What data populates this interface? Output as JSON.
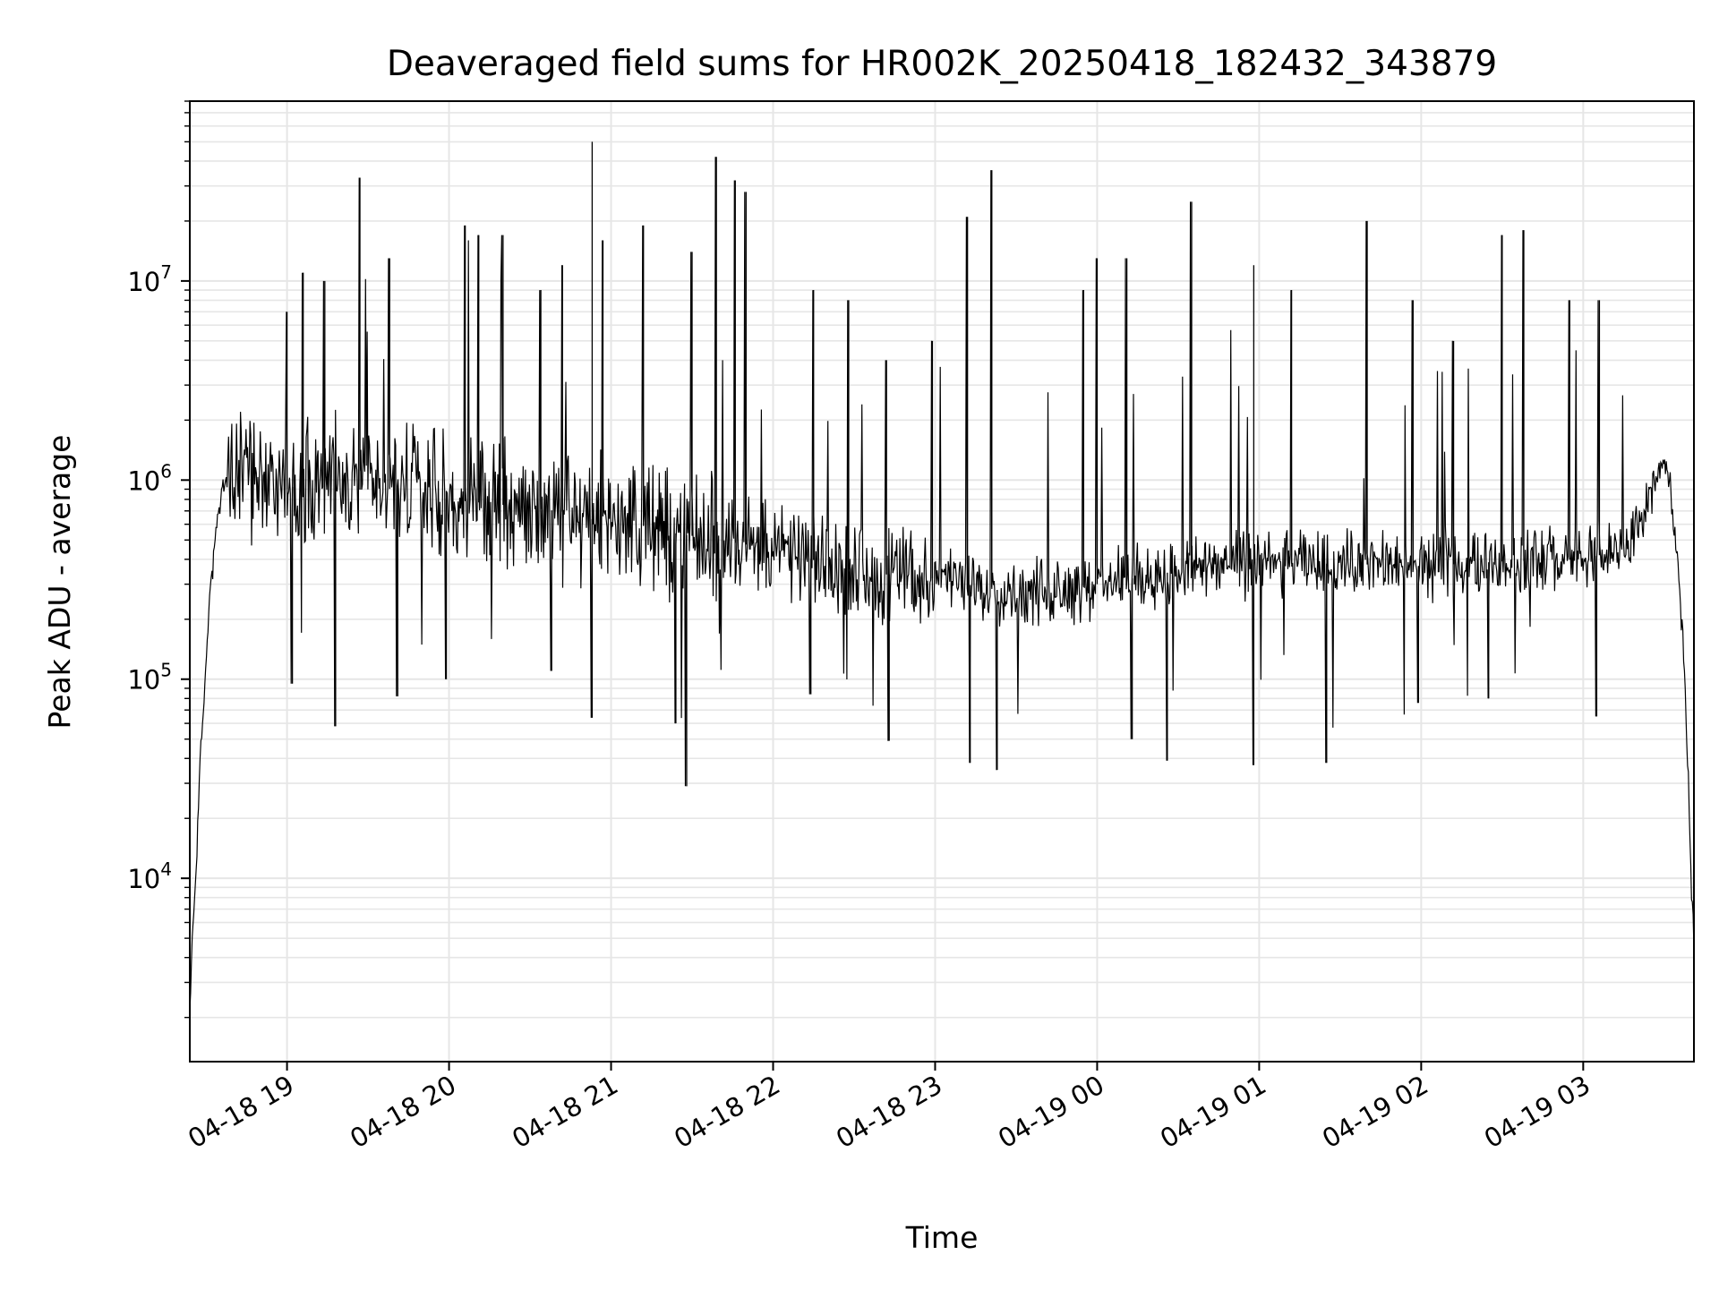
{
  "chart_data": {
    "type": "line",
    "title": "Deaveraged field sums for HR002K_20250418_182432_343879",
    "xlabel": "Time",
    "ylabel": "Peak ADU - average",
    "yscale": "log",
    "ylim": [
      1200,
      80000000
    ],
    "xlim": [
      "2025-04-18 18:24",
      "2025-04-19 03:41"
    ],
    "grid": true,
    "line_color": "#000000",
    "grid_color": "#e6e6e6",
    "x_tick_labels": [
      "04-18 19",
      "04-18 20",
      "04-18 21",
      "04-18 22",
      "04-18 23",
      "04-19 00",
      "04-19 01",
      "04-19 02",
      "04-19 03"
    ],
    "x_ticks": [
      "2025-04-18 19:00",
      "2025-04-18 20:00",
      "2025-04-18 21:00",
      "2025-04-18 22:00",
      "2025-04-18 23:00",
      "2025-04-19 00:00",
      "2025-04-19 01:00",
      "2025-04-19 02:00",
      "2025-04-19 03:00"
    ],
    "y_ticks": [
      {
        "value": 10000,
        "base": "10",
        "exp": "4"
      },
      {
        "value": 100000,
        "base": "10",
        "exp": "5"
      },
      {
        "value": 1000000,
        "base": "10",
        "exp": "6"
      },
      {
        "value": 10000000,
        "base": "10",
        "exp": "7"
      }
    ],
    "series": [
      {
        "points": [
          [
            "2025-04-18 18:24",
            2000
          ],
          [
            "2025-04-18 18:25",
            5500
          ],
          [
            "2025-04-18 18:26",
            9000
          ],
          [
            "2025-04-18 18:27",
            20000
          ],
          [
            "2025-04-18 18:28",
            40000
          ],
          [
            "2025-04-18 18:30",
            120000
          ],
          [
            "2025-04-18 18:31",
            220000
          ],
          [
            "2025-04-18 18:33",
            450000
          ],
          [
            "2025-04-18 18:35",
            750000
          ],
          [
            "2025-04-18 18:37",
            950000
          ],
          [
            "2025-04-18 18:40",
            1100000
          ],
          [
            "2025-04-18 18:45",
            1000000
          ],
          [
            "2025-04-18 18:50",
            1200000
          ],
          [
            "2025-04-18 19:00",
            900000
          ],
          [
            "2025-04-18 19:15",
            1100000
          ],
          [
            "2025-04-18 19:30",
            850000
          ],
          [
            "2025-04-18 19:45",
            950000
          ],
          [
            "2025-04-18 20:00",
            800000
          ],
          [
            "2025-04-18 20:20",
            750000
          ],
          [
            "2025-04-18 20:40",
            700000
          ],
          [
            "2025-04-18 21:00",
            650000
          ],
          [
            "2025-04-18 21:20",
            550000
          ],
          [
            "2025-04-18 21:40",
            500000
          ],
          [
            "2025-04-18 22:00",
            450000
          ],
          [
            "2025-04-18 22:30",
            350000
          ],
          [
            "2025-04-18 23:00",
            320000
          ],
          [
            "2025-04-18 23:30",
            270000
          ],
          [
            "2025-04-19 00:00",
            300000
          ],
          [
            "2025-04-19 00:30",
            350000
          ],
          [
            "2025-04-19 01:00",
            380000
          ],
          [
            "2025-04-19 01:30",
            380000
          ],
          [
            "2025-04-19 02:00",
            370000
          ],
          [
            "2025-04-19 02:30",
            390000
          ],
          [
            "2025-04-19 03:00",
            400000
          ],
          [
            "2025-04-19 03:15",
            450000
          ],
          [
            "2025-04-19 03:25",
            800000
          ],
          [
            "2025-04-19 03:29",
            1250000
          ],
          [
            "2025-04-19 03:32",
            1000000
          ],
          [
            "2025-04-19 03:35",
            400000
          ],
          [
            "2025-04-19 03:37",
            150000
          ],
          [
            "2025-04-19 03:39",
            30000
          ],
          [
            "2025-04-19 03:40",
            10000
          ],
          [
            "2025-04-19 03:41",
            4500
          ]
        ],
        "spikes": [
          [
            "2025-04-18 19:00",
            7000000
          ],
          [
            "2025-04-18 19:06",
            11000000
          ],
          [
            "2025-04-18 19:14",
            10000000
          ],
          [
            "2025-04-18 19:27",
            33000000
          ],
          [
            "2025-04-18 19:38",
            13000000
          ],
          [
            "2025-04-18 20:06",
            19000000
          ],
          [
            "2025-04-18 20:11",
            17000000
          ],
          [
            "2025-04-18 20:20",
            17000000
          ],
          [
            "2025-04-18 20:34",
            9000000
          ],
          [
            "2025-04-18 20:42",
            12000000
          ],
          [
            "2025-04-18 20:53",
            50000000
          ],
          [
            "2025-04-18 20:57",
            16000000
          ],
          [
            "2025-04-18 21:12",
            19000000
          ],
          [
            "2025-04-18 21:30",
            14000000
          ],
          [
            "2025-04-18 21:39",
            42000000
          ],
          [
            "2025-04-18 21:46",
            32000000
          ],
          [
            "2025-04-18 21:50",
            28000000
          ],
          [
            "2025-04-18 22:15",
            9000000
          ],
          [
            "2025-04-18 22:28",
            8000000
          ],
          [
            "2025-04-18 22:42",
            4000000
          ],
          [
            "2025-04-18 22:59",
            5000000
          ],
          [
            "2025-04-18 23:12",
            21000000
          ],
          [
            "2025-04-18 23:21",
            36000000
          ],
          [
            "2025-04-18 23:55",
            9000000
          ],
          [
            "2025-04-19 00:00",
            13000000
          ],
          [
            "2025-04-19 00:11",
            13000000
          ],
          [
            "2025-04-19 00:35",
            25000000
          ],
          [
            "2025-04-19 00:58",
            12000000
          ],
          [
            "2025-04-19 01:12",
            9000000
          ],
          [
            "2025-04-19 01:40",
            20000000
          ],
          [
            "2025-04-19 01:57",
            8000000
          ],
          [
            "2025-04-19 02:12",
            5000000
          ],
          [
            "2025-04-19 02:30",
            17000000
          ],
          [
            "2025-04-19 02:38",
            18000000
          ],
          [
            "2025-04-19 02:55",
            8000000
          ],
          [
            "2025-04-19 03:06",
            8000000
          ]
        ],
        "dips": [
          [
            "2025-04-18 19:02",
            95000
          ],
          [
            "2025-04-18 19:18",
            58000
          ],
          [
            "2025-04-18 19:41",
            82000
          ],
          [
            "2025-04-18 19:59",
            100000
          ],
          [
            "2025-04-18 20:38",
            110000
          ],
          [
            "2025-04-18 20:53",
            64000
          ],
          [
            "2025-04-18 21:24",
            60000
          ],
          [
            "2025-04-18 21:28",
            29000
          ],
          [
            "2025-04-18 22:14",
            84000
          ],
          [
            "2025-04-18 22:43",
            49000
          ],
          [
            "2025-04-18 23:13",
            38000
          ],
          [
            "2025-04-18 23:23",
            35000
          ],
          [
            "2025-04-19 00:13",
            50000
          ],
          [
            "2025-04-19 00:26",
            39000
          ],
          [
            "2025-04-19 00:58",
            37000
          ],
          [
            "2025-04-19 01:25",
            38000
          ],
          [
            "2025-04-19 01:59",
            76000
          ],
          [
            "2025-04-19 02:25",
            80000
          ],
          [
            "2025-04-19 03:05",
            65000
          ]
        ]
      }
    ]
  }
}
